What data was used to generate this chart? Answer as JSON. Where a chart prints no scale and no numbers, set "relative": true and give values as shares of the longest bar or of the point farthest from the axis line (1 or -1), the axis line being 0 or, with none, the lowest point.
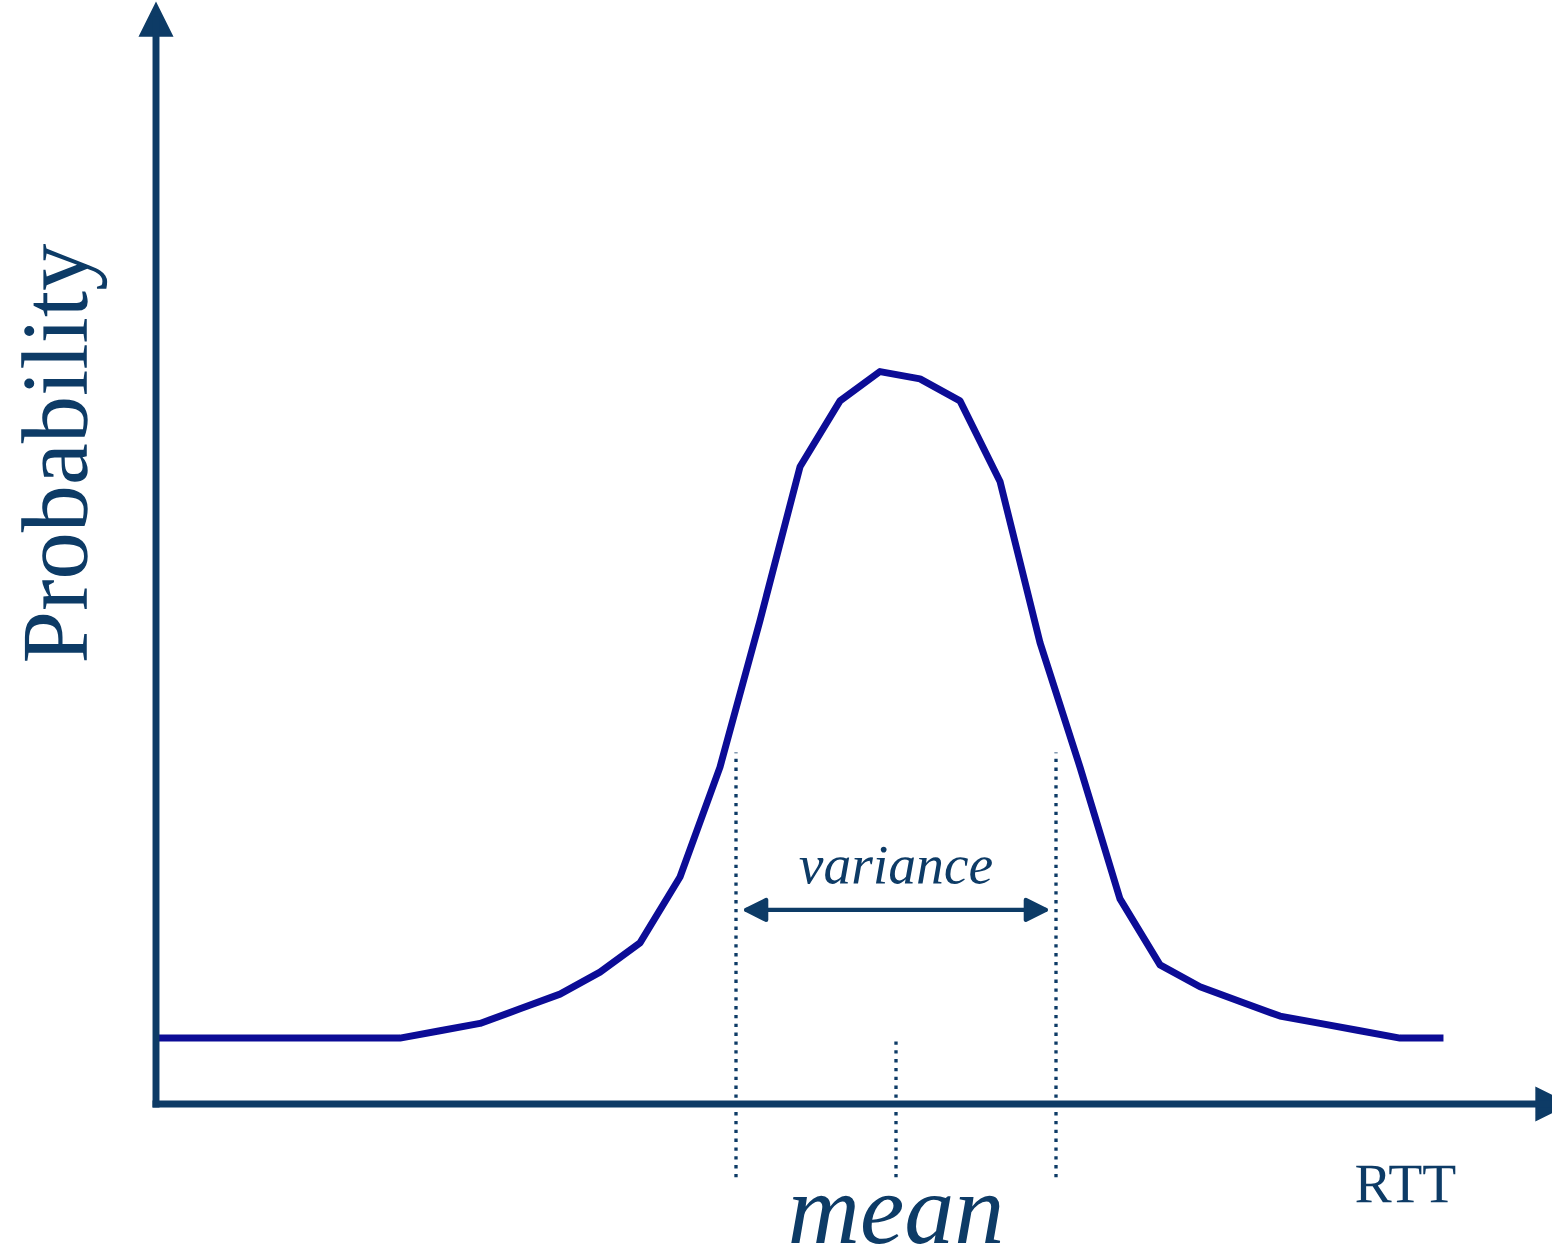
{
  "chart_data": {
    "type": "line",
    "relative": true,
    "ylabel": "Probability",
    "xlabel": "RTT",
    "categories": [
      null,
      null,
      null,
      null,
      null,
      null,
      null,
      null,
      null,
      null,
      null,
      null,
      null,
      null,
      null,
      null,
      null,
      null,
      null,
      null,
      null,
      null,
      null,
      null,
      null,
      null,
      null,
      null,
      null,
      null,
      null,
      null,
      null
    ],
    "series": [
      {
        "color": "#0c0c96",
        "values": [
          0.09,
          0.09,
          0.09,
          0.09,
          0.09,
          0.09,
          0.09,
          0.1,
          0.11,
          0.13,
          0.15,
          0.18,
          0.22,
          0.31,
          0.46,
          0.66,
          0.87,
          0.96,
          1.0,
          0.99,
          0.96,
          0.85,
          0.63,
          0.46,
          0.28,
          0.19,
          0.16,
          0.14,
          0.12,
          0.11,
          0.1,
          0.09,
          0.09
        ]
      }
    ],
    "annotations": [
      "variance",
      "mean"
    ],
    "legend": false,
    "marker": "none",
    "line_style": "solid"
  }
}
